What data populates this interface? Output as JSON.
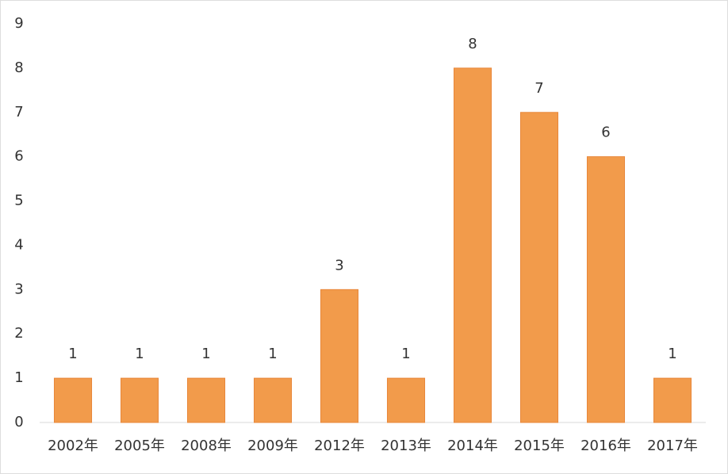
{
  "chart_data": {
    "type": "bar",
    "categories": [
      "2002年",
      "2005年",
      "2008年",
      "2009年",
      "2012年",
      "2013年",
      "2014年",
      "2015年",
      "2016年",
      "2017年"
    ],
    "values": [
      1,
      1,
      1,
      1,
      3,
      1,
      8,
      7,
      6,
      1
    ],
    "color": "#f29b4b",
    "ylim": [
      0,
      9
    ],
    "yticks": [
      0,
      1,
      2,
      3,
      4,
      5,
      6,
      7,
      8,
      9
    ],
    "grid": false,
    "data_labels": true
  }
}
